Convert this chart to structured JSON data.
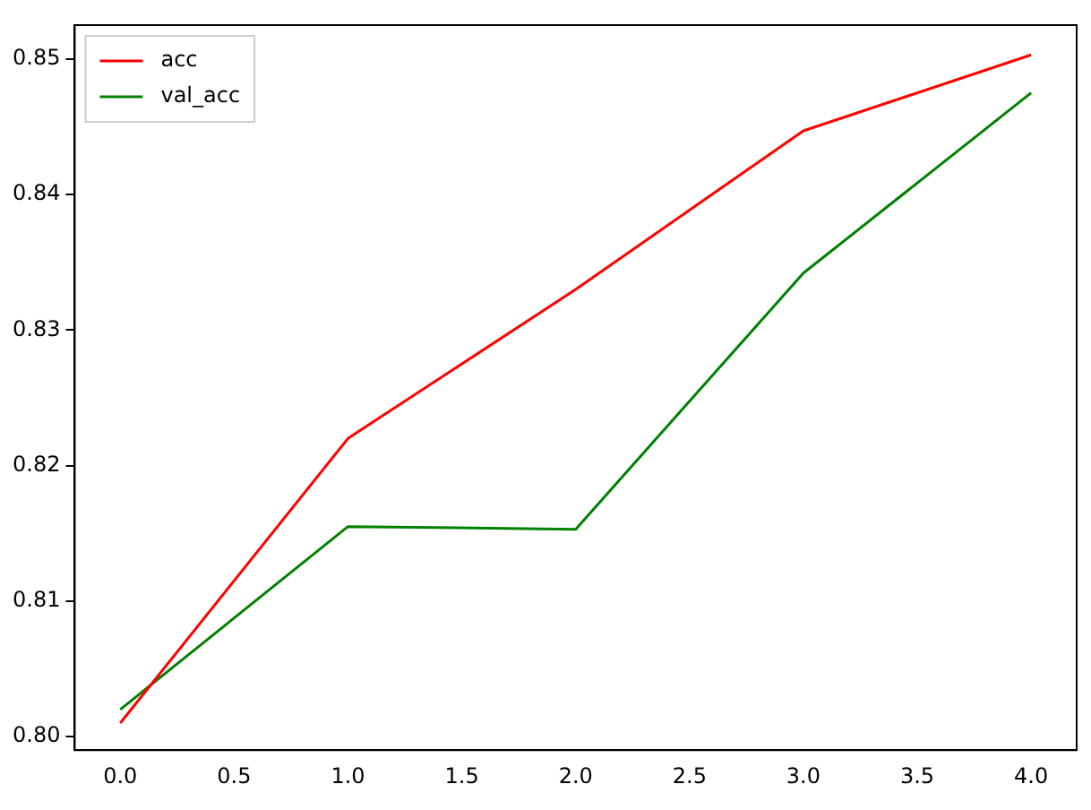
{
  "chart_data": {
    "type": "line",
    "x": [
      0,
      1,
      2,
      3,
      4
    ],
    "series": [
      {
        "name": "acc",
        "color": "#ff0000",
        "values": [
          0.801,
          0.822,
          0.833,
          0.8447,
          0.8503
        ]
      },
      {
        "name": "val_acc",
        "color": "#008000",
        "values": [
          0.802,
          0.8155,
          0.8153,
          0.8342,
          0.8475
        ]
      }
    ],
    "xlim": [
      -0.2,
      4.2
    ],
    "xticks": [
      {
        "value": 0,
        "label": "0.0"
      },
      {
        "value": 0.5,
        "label": "0.5"
      },
      {
        "value": 1,
        "label": "1.0"
      },
      {
        "value": 1.5,
        "label": "1.5"
      },
      {
        "value": 2,
        "label": "2.0"
      },
      {
        "value": 2.5,
        "label": "2.5"
      },
      {
        "value": 3,
        "label": "3.0"
      },
      {
        "value": 3.5,
        "label": "3.5"
      },
      {
        "value": 4,
        "label": "4.0"
      }
    ],
    "ylim": [
      0.799,
      0.8525
    ],
    "yticks": [
      {
        "value": 0.8,
        "label": "0.80"
      },
      {
        "value": 0.81,
        "label": "0.81"
      },
      {
        "value": 0.82,
        "label": "0.82"
      },
      {
        "value": 0.83,
        "label": "0.83"
      },
      {
        "value": 0.84,
        "label": "0.84"
      },
      {
        "value": 0.85,
        "label": "0.85"
      }
    ],
    "grid": false,
    "legend": "top left",
    "marker": "none",
    "line_style": "solid"
  }
}
